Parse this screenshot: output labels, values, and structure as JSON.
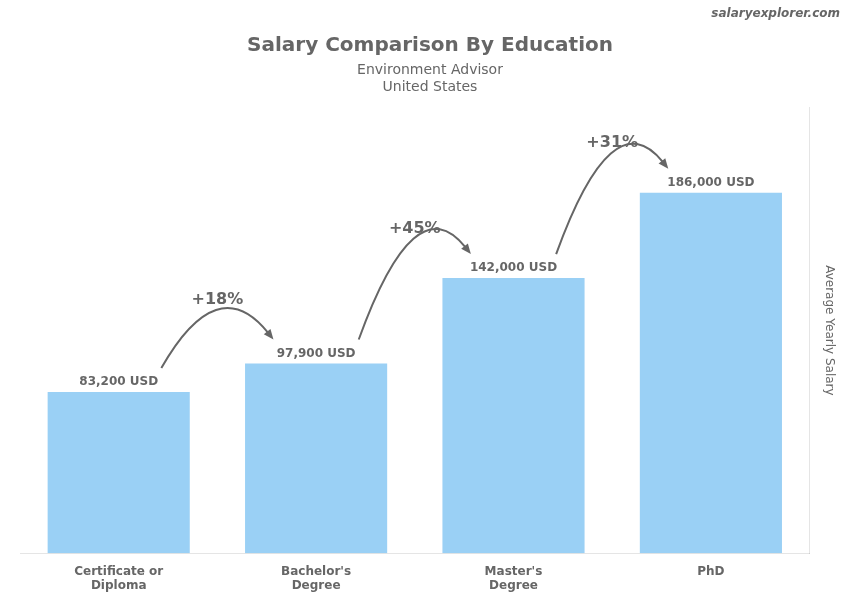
{
  "chart_data": {
    "type": "bar",
    "title": "Salary Comparison By Education",
    "subtitle": [
      "Environment Advisor",
      "United States"
    ],
    "source": "salaryexplorer.com",
    "ylabel": "Average Yearly Salary",
    "categories": [
      "Certificate or\nDiploma",
      "Bachelor's\nDegree",
      "Master's\nDegree",
      "PhD"
    ],
    "values": [
      83200,
      97900,
      142000,
      186000
    ],
    "value_labels": [
      "83,200 USD",
      "97,900 USD",
      "142,000 USD",
      "186,000 USD"
    ],
    "data_labels": true,
    "annotations": [
      "+18%",
      "+45%",
      "+31%"
    ],
    "ylim": [
      0,
      230000
    ],
    "grid": false,
    "tick_labels": "x"
  }
}
